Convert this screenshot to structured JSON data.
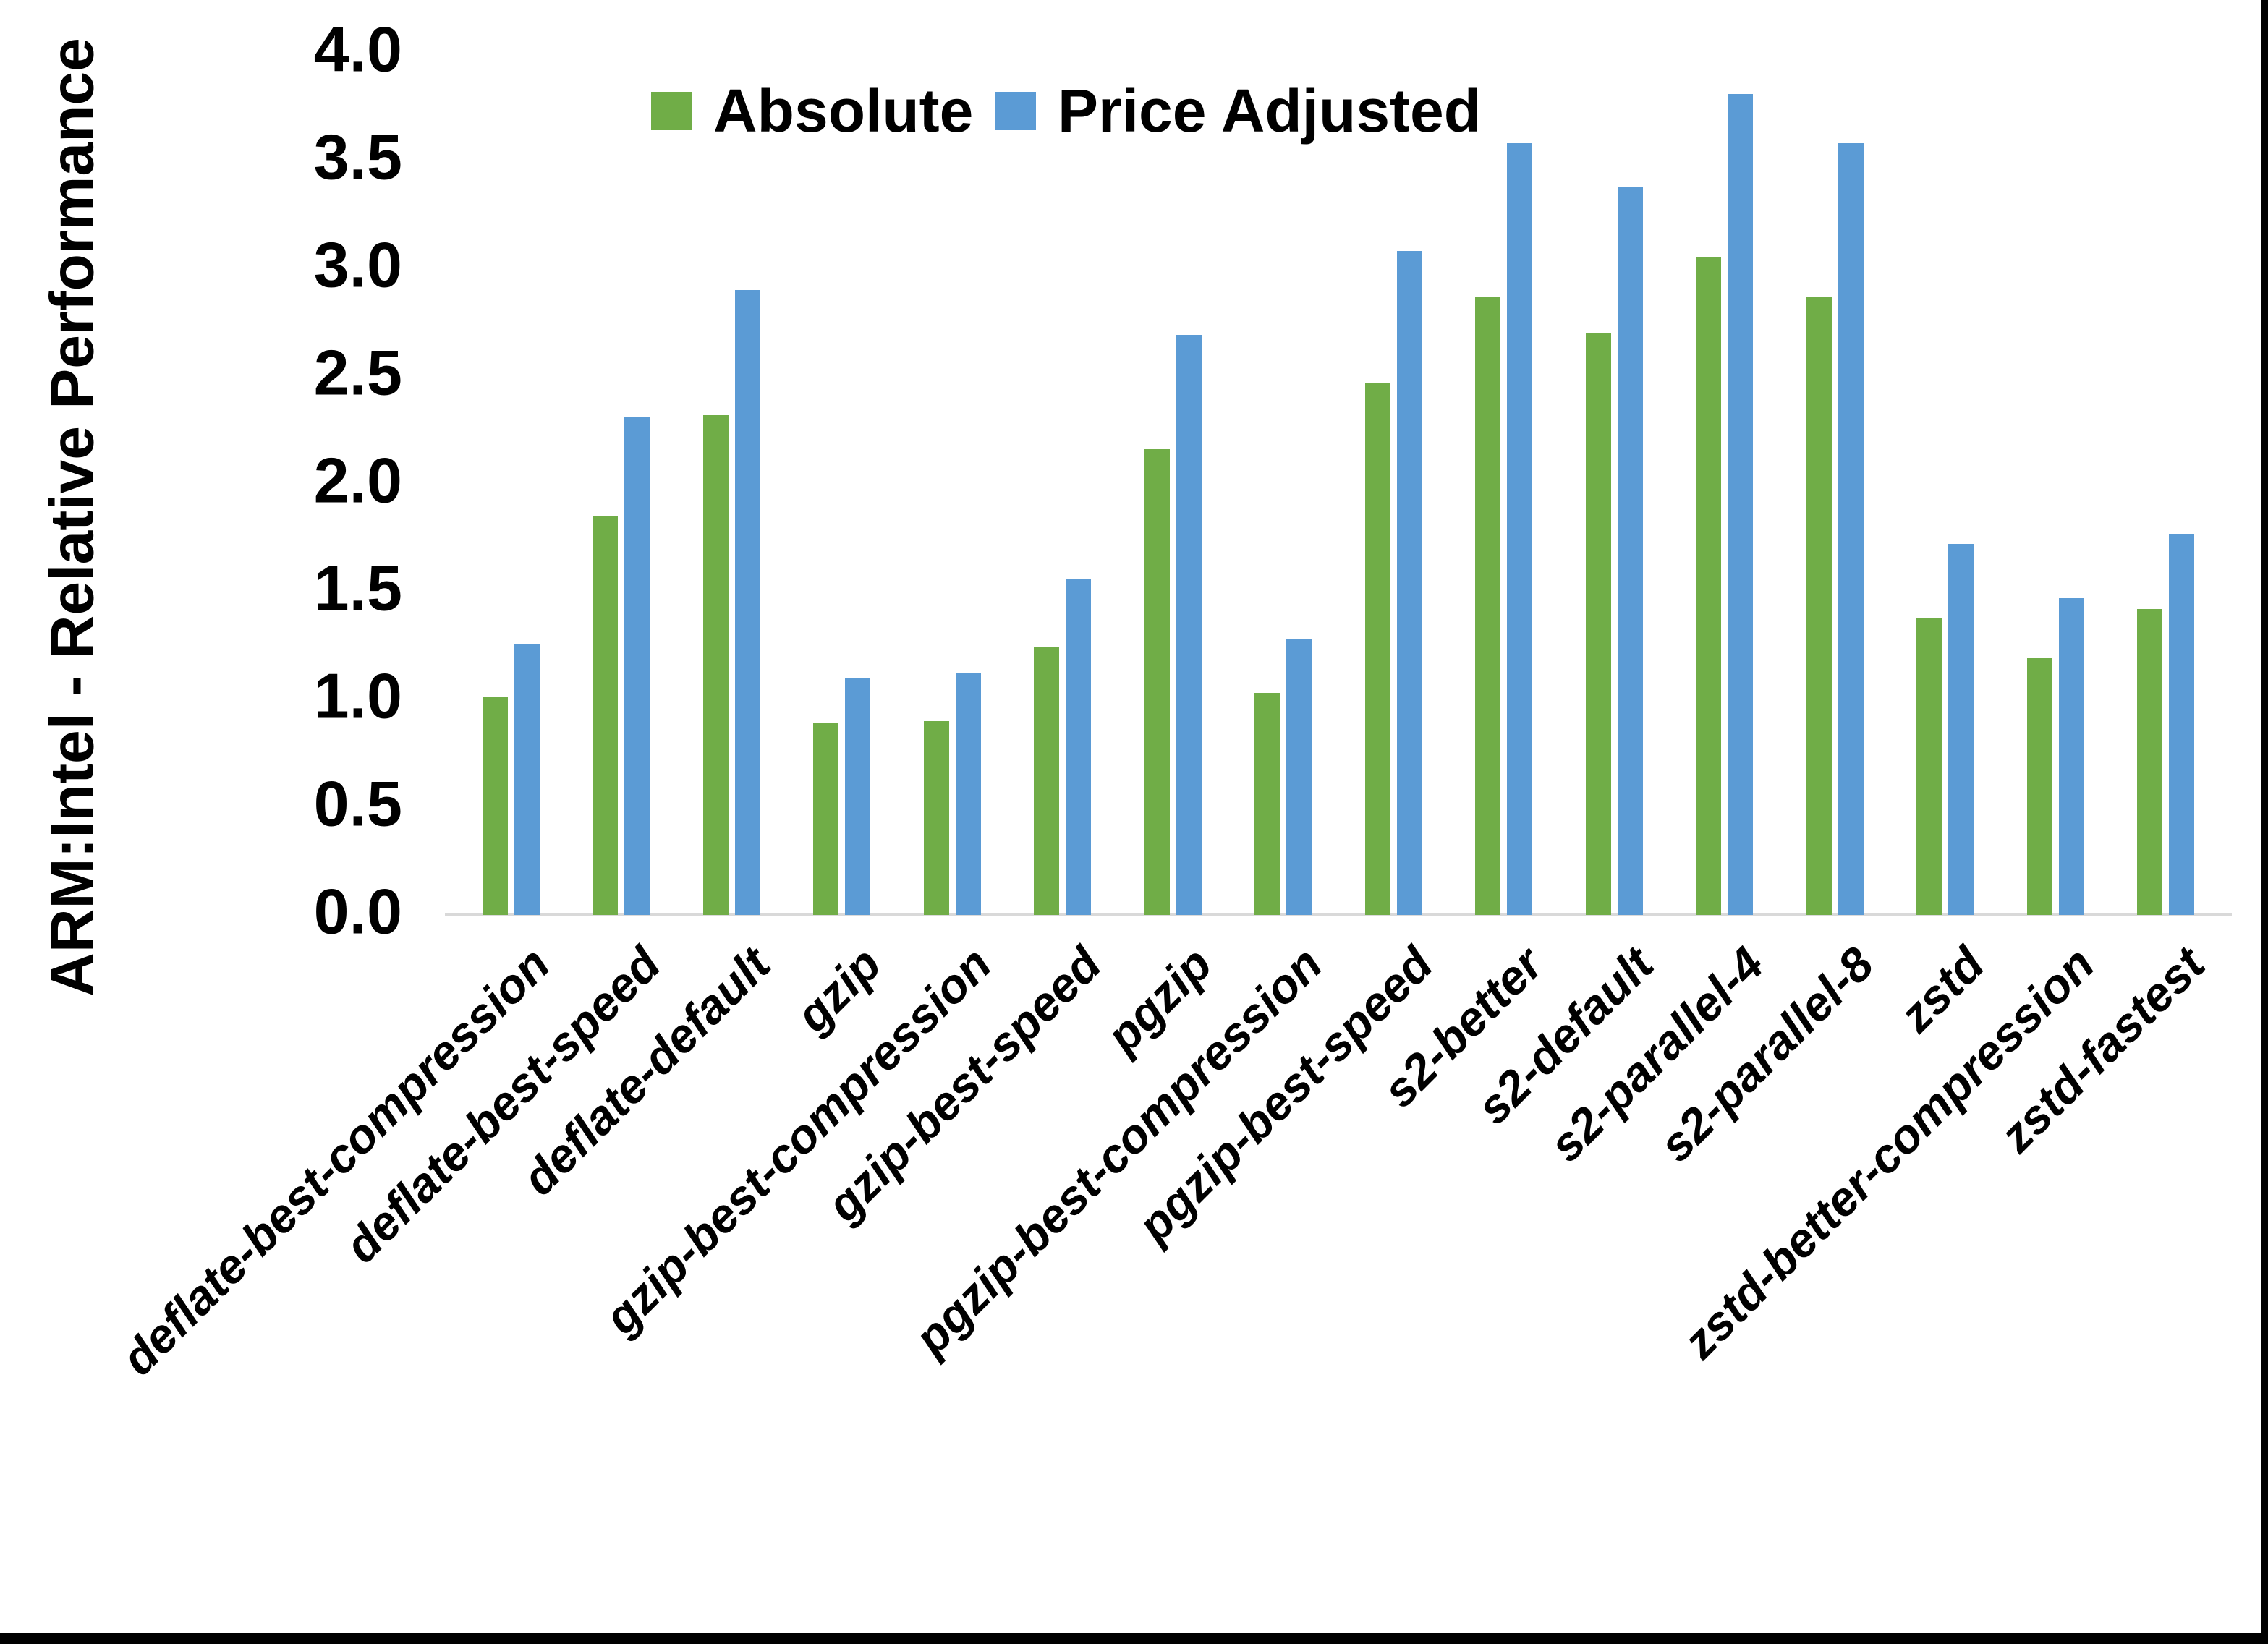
{
  "chart_data": {
    "type": "bar",
    "title": "",
    "ylabel": "ARM:Intel - Relative Performance",
    "xlabel": "",
    "ylim": [
      0.0,
      4.0
    ],
    "ytick_step": 0.5,
    "yticks": [
      "0.0",
      "0.5",
      "1.0",
      "1.5",
      "2.0",
      "2.5",
      "3.0",
      "3.5",
      "4.0"
    ],
    "grid": false,
    "legend_position": "top",
    "background_color": "#ffffff",
    "axis_line_color": "#d9d9d9",
    "frame_border_color": "#000000",
    "categories": [
      "deflate-best-compression",
      "deflate-best-speed",
      "deflate-default",
      "gzip",
      "gzip-best-compression",
      "gzip-best-speed",
      "pgzip",
      "pgzip-best-compression",
      "pgzip-best-speed",
      "s2-better",
      "s2-default",
      "s2-parallel-4",
      "s2-parallel-8",
      "zstd",
      "zstd-better-compression",
      "zstd-fastest"
    ],
    "series": [
      {
        "name": "Absolute",
        "color": "#70ad47",
        "values": [
          1.01,
          1.85,
          2.32,
          0.89,
          0.9,
          1.24,
          2.16,
          1.03,
          2.47,
          2.87,
          2.7,
          3.05,
          2.87,
          1.38,
          1.19,
          1.42
        ]
      },
      {
        "name": "Price Adjusted",
        "color": "#5b9bd5",
        "values": [
          1.26,
          2.31,
          2.9,
          1.1,
          1.12,
          1.56,
          2.69,
          1.28,
          3.08,
          3.58,
          3.38,
          3.81,
          3.58,
          1.72,
          1.47,
          1.77
        ]
      }
    ]
  }
}
